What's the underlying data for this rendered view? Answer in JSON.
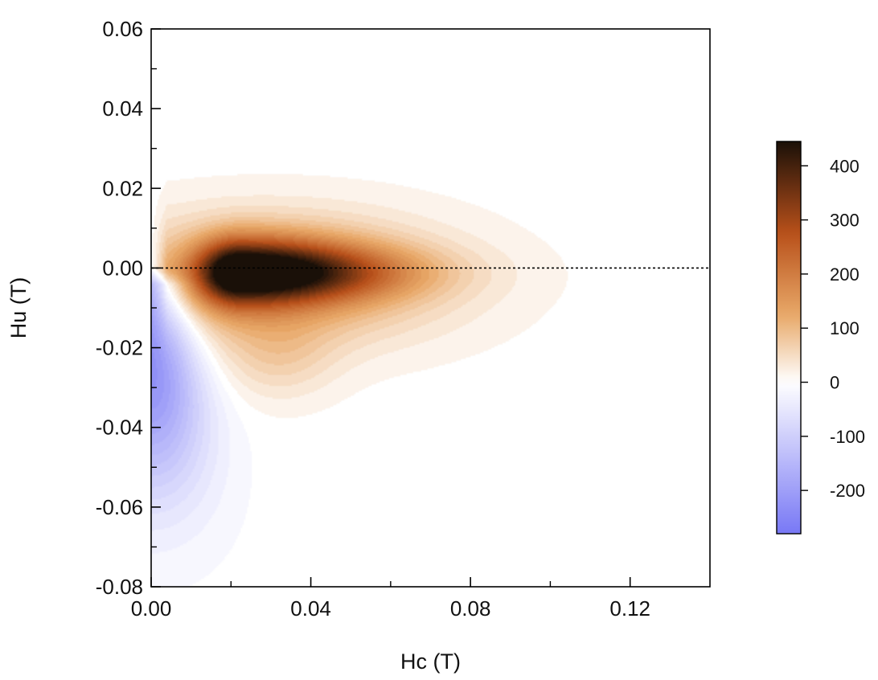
{
  "chart_data": {
    "type": "heatmap",
    "subtype": "FORC distribution (filled contour)",
    "title": "",
    "xlabel": "Hc (T)",
    "ylabel": "Hu (T)",
    "xlim": [
      0.0,
      0.14
    ],
    "ylim": [
      -0.08,
      0.06
    ],
    "x_ticks": [
      "0.00",
      "0.04",
      "0.08",
      "0.12"
    ],
    "x_tick_values": [
      0.0,
      0.04,
      0.08,
      0.12
    ],
    "x_minor_tick_values": [
      0.02,
      0.06,
      0.1
    ],
    "y_ticks": [
      "0.06",
      "0.04",
      "0.02",
      "0.00",
      "-0.02",
      "-0.04",
      "-0.06",
      "-0.08"
    ],
    "y_tick_values": [
      0.06,
      0.04,
      0.02,
      0.0,
      -0.02,
      -0.04,
      -0.06,
      -0.08
    ],
    "y_minor_tick_values": [
      0.05,
      0.03,
      0.01,
      -0.01,
      -0.03,
      -0.05,
      -0.07
    ],
    "reference_line": {
      "y": 0.0,
      "style": "dotted"
    },
    "grid": false,
    "colorbar": {
      "range": [
        -280,
        445
      ],
      "ticks": [
        "400",
        "300",
        "200",
        "100",
        "0",
        "-100",
        "-200"
      ],
      "tick_values": [
        400,
        300,
        200,
        100,
        0,
        -100,
        -200
      ],
      "colors": {
        "min": "#7878f5",
        "zero": "#ffffff",
        "low": "#e8a868",
        "mid": "#b8501a",
        "max": "#1a1008"
      }
    },
    "features": [
      {
        "name": "main peak",
        "hc": 0.022,
        "hu": -0.001,
        "value": 440,
        "spread_hc": [
          0.0,
          0.11
        ],
        "spread_hu": [
          -0.03,
          0.02
        ]
      },
      {
        "name": "negative region",
        "hc": 0.002,
        "hu": -0.025,
        "value": -230,
        "spread_hc": [
          0.0,
          0.018
        ],
        "spread_hu": [
          -0.08,
          0.0
        ]
      }
    ]
  }
}
